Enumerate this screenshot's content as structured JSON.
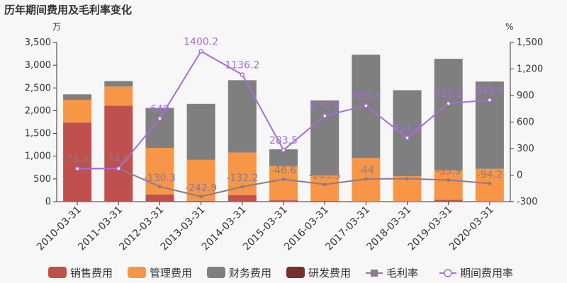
{
  "chart_data": {
    "type": "bar",
    "title": "历年期间费用及毛利率变化",
    "y_unit_left": "万",
    "y_unit_right": "%",
    "categories": [
      "2010-03-31",
      "2011-03-31",
      "2012-03-31",
      "2013-03-31",
      "2014-03-31",
      "2015-03-31",
      "2016-03-31",
      "2017-03-31",
      "2018-03-31",
      "2019-03-31",
      "2020-03-31"
    ],
    "ylim_left": [
      0,
      3500
    ],
    "yticks_left": [
      "0",
      "500",
      "1,000",
      "1,500",
      "2,000",
      "2,500",
      "3,000",
      "3,500"
    ],
    "ylim_right": [
      -300,
      1500
    ],
    "yticks_right": [
      "-300",
      "0",
      "300",
      "600",
      "900",
      "1,200",
      "1,500"
    ],
    "bar_series": [
      {
        "name": "销售费用",
        "color": "#c0504d",
        "values": [
          1740,
          2110,
          160,
          20,
          140,
          30,
          15,
          10,
          10,
          40,
          10
        ]
      },
      {
        "name": "管理费用",
        "color": "#f79646",
        "values": [
          500,
          420,
          1020,
          900,
          940,
          750,
          560,
          950,
          550,
          650,
          710
        ]
      },
      {
        "name": "财务费用",
        "color": "#7f7f7f",
        "values": [
          120,
          120,
          880,
          1230,
          1590,
          370,
          1650,
          2270,
          1890,
          2450,
          1920
        ]
      },
      {
        "name": "研发费用",
        "color": "#7b2c2c",
        "values": [
          0,
          0,
          0,
          0,
          0,
          0,
          0,
          0,
          0,
          0,
          0
        ]
      }
    ],
    "line_series": [
      {
        "name": "毛利率",
        "color": "#8c7a8c",
        "values": [
          73.3,
          74.9,
          -130.3,
          -242.9,
          -132.2,
          -46.6,
          -105.5,
          -44,
          -40.5,
          -55.9,
          -94.2
        ],
        "labels": [
          "73.3",
          "74.9",
          "-130.3",
          "-242.9",
          "-132.2",
          "-46.6",
          "-105.5",
          "-44",
          "-40.5",
          "-55.9",
          "-94.2"
        ]
      },
      {
        "name": "期间费用率",
        "color": "#a66ddb",
        "values": [
          73.3,
          74.9,
          640,
          1400.2,
          1136.2,
          283.5,
          670.9,
          785.3,
          421.3,
          810.1,
          848.9
        ],
        "labels": [
          "",
          "",
          "640",
          "1400.2",
          "1136.2",
          "283.5",
          "670.9",
          "785.3",
          "421.3",
          "810.1",
          "848.9"
        ]
      }
    ],
    "legend_position": "bottom",
    "grid": false
  }
}
